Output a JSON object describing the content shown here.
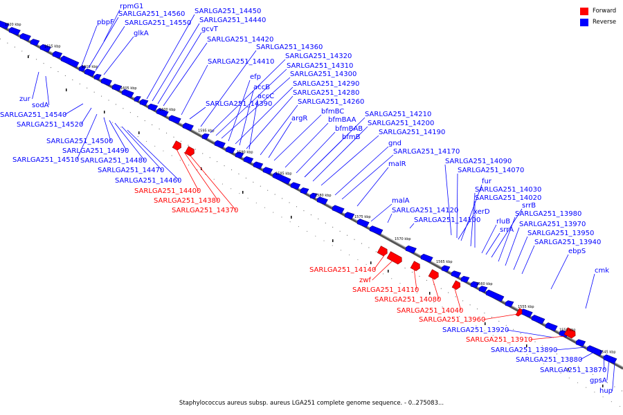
{
  "caption": "Staphylococcus aureus subsp. aureus LGA251 complete genome sequence. - 0..275083...",
  "legend": [
    {
      "label": "Forward",
      "color": "#ff0000"
    },
    {
      "label": "Reverse",
      "color": "#0000ff"
    }
  ],
  "colors": {
    "forward": "#ff0000",
    "reverse": "#0000ff",
    "track": "#777777"
  },
  "ticks": [
    "1620 kbp",
    "1615 kbp",
    "1610 kbp",
    "1605 kbp",
    "1600 kbp",
    "1595 kbp",
    "1590 kbp",
    "1585 kbp",
    "1580 kbp",
    "1575 kbp",
    "1570 kbp",
    "1565 kbp",
    "1560 kbp",
    "1555 kbp",
    "1550 kbp",
    "1545 kbp"
  ],
  "genes": [
    {
      "name": "rpmG1",
      "strand": "reverse"
    },
    {
      "name": "pbpF",
      "strand": "reverse"
    },
    {
      "name": "SARLGA251_14560",
      "strand": "reverse"
    },
    {
      "name": "SARLGA251_14550",
      "strand": "reverse"
    },
    {
      "name": "glkA",
      "strand": "reverse"
    },
    {
      "name": "SARLGA251_14450",
      "strand": "reverse"
    },
    {
      "name": "SARLGA251_14440",
      "strand": "reverse"
    },
    {
      "name": "gcvT",
      "strand": "reverse"
    },
    {
      "name": "SARLGA251_14420",
      "strand": "reverse"
    },
    {
      "name": "SARLGA251_14360",
      "strand": "reverse"
    },
    {
      "name": "SARLGA251_14410",
      "strand": "reverse"
    },
    {
      "name": "SARLGA251_14320",
      "strand": "reverse"
    },
    {
      "name": "SARLGA251_14310",
      "strand": "reverse"
    },
    {
      "name": "SARLGA251_14300",
      "strand": "reverse"
    },
    {
      "name": "efp",
      "strand": "reverse"
    },
    {
      "name": "SARLGA251_14290",
      "strand": "reverse"
    },
    {
      "name": "accB",
      "strand": "reverse"
    },
    {
      "name": "SARLGA251_14280",
      "strand": "reverse"
    },
    {
      "name": "accC",
      "strand": "reverse"
    },
    {
      "name": "SARLGA251_14390",
      "strand": "reverse"
    },
    {
      "name": "SARLGA251_14260",
      "strand": "reverse"
    },
    {
      "name": "bfmBC",
      "strand": "reverse"
    },
    {
      "name": "argR",
      "strand": "reverse"
    },
    {
      "name": "SARLGA251_14210",
      "strand": "reverse"
    },
    {
      "name": "bfmBAA",
      "strand": "reverse"
    },
    {
      "name": "SARLGA251_14200",
      "strand": "reverse"
    },
    {
      "name": "bfmBAB",
      "strand": "reverse"
    },
    {
      "name": "SARLGA251_14190",
      "strand": "reverse"
    },
    {
      "name": "bfmB",
      "strand": "reverse"
    },
    {
      "name": "gnd",
      "strand": "reverse"
    },
    {
      "name": "SARLGA251_14170",
      "strand": "reverse"
    },
    {
      "name": "malR",
      "strand": "reverse"
    },
    {
      "name": "SARLGA251_14090",
      "strand": "reverse"
    },
    {
      "name": "SARLGA251_14070",
      "strand": "reverse"
    },
    {
      "name": "fur",
      "strand": "reverse"
    },
    {
      "name": "SARLGA251_14030",
      "strand": "reverse"
    },
    {
      "name": "SARLGA251_14020",
      "strand": "reverse"
    },
    {
      "name": "malA",
      "strand": "reverse"
    },
    {
      "name": "srrB",
      "strand": "reverse"
    },
    {
      "name": "SARLGA251_14120",
      "strand": "reverse"
    },
    {
      "name": "SARLGA251_13980",
      "strand": "reverse"
    },
    {
      "name": "xerD",
      "strand": "reverse"
    },
    {
      "name": "SARLGA251_14100",
      "strand": "reverse"
    },
    {
      "name": "rluB",
      "strand": "reverse"
    },
    {
      "name": "SARLGA251_13970",
      "strand": "reverse"
    },
    {
      "name": "srrA",
      "strand": "reverse"
    },
    {
      "name": "SARLGA251_13950",
      "strand": "reverse"
    },
    {
      "name": "SARLGA251_13940",
      "strand": "reverse"
    },
    {
      "name": "ebpS",
      "strand": "reverse"
    },
    {
      "name": "cmk",
      "strand": "reverse"
    },
    {
      "name": "zur",
      "strand": "reverse"
    },
    {
      "name": "sodA",
      "strand": "reverse"
    },
    {
      "name": "SARLGA251_14540",
      "strand": "reverse"
    },
    {
      "name": "SARLGA251_14520",
      "strand": "reverse"
    },
    {
      "name": "SARLGA251_14500",
      "strand": "reverse"
    },
    {
      "name": "SARLGA251_14490",
      "strand": "reverse"
    },
    {
      "name": "SARLGA251_14510",
      "strand": "reverse"
    },
    {
      "name": "SARLGA251_14480",
      "strand": "reverse"
    },
    {
      "name": "SARLGA251_14470",
      "strand": "reverse"
    },
    {
      "name": "SARLGA251_14460",
      "strand": "reverse"
    },
    {
      "name": "SARLGA251_14400",
      "strand": "forward"
    },
    {
      "name": "SARLGA251_14380",
      "strand": "forward"
    },
    {
      "name": "SARLGA251_14370",
      "strand": "forward"
    },
    {
      "name": "SARLGA251_14140",
      "strand": "forward"
    },
    {
      "name": "zwf",
      "strand": "forward"
    },
    {
      "name": "SARLGA251_14110",
      "strand": "forward"
    },
    {
      "name": "SARLGA251_14080",
      "strand": "forward"
    },
    {
      "name": "SARLGA251_14040",
      "strand": "forward"
    },
    {
      "name": "SARLGA251_13960",
      "strand": "forward"
    },
    {
      "name": "SARLGA251_13920",
      "strand": "reverse"
    },
    {
      "name": "SARLGA251_13910",
      "strand": "forward"
    },
    {
      "name": "SARLGA251_13890",
      "strand": "reverse"
    },
    {
      "name": "SARLGA251_13880",
      "strand": "reverse"
    },
    {
      "name": "SARLGA251_13870",
      "strand": "reverse"
    },
    {
      "name": "gpsA",
      "strand": "reverse"
    },
    {
      "name": "hup",
      "strand": "reverse"
    }
  ]
}
